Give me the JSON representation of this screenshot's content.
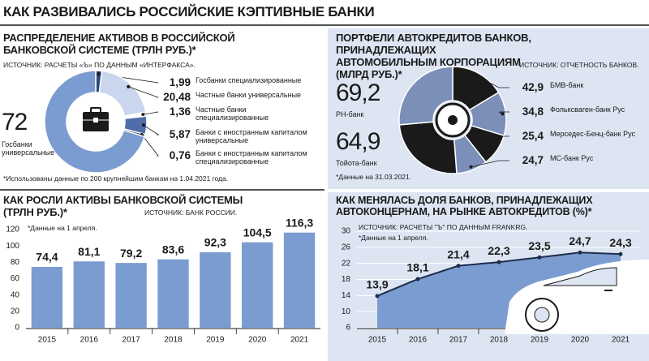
{
  "title": "КАК РАЗВИВАЛИСЬ РОССИЙСКИЕ КЭПТИВНЫЕ БАНКИ",
  "chart_data": [
    {
      "type": "pie",
      "title": "РАСПРЕДЕЛЕНИЕ АКТИВОВ В РОССИЙСКОЙ БАНКОВСКОЙ СИСТЕМЕ (ТРЛН РУБ.)*",
      "source": "ИСТОЧНИК: РАСЧЕТЫ «Ъ» ПО ДАННЫМ «ИНТЕРФАКСА».",
      "note": "*Использованы данные по 200 крупнейшим банкам на 1.04.2021 года.",
      "categories": [
        "Госбанки специализированные",
        "Частные банки универсальные",
        "Частные банки специализированные",
        "Банки с иностранным капиталом универсальные",
        "Банки с иностранным капиталом специализированные",
        "Госбанки универсальные"
      ],
      "values": [
        1.99,
        20.48,
        1.36,
        5.87,
        0.76,
        72
      ],
      "value_labels": [
        "1,99",
        "20,48",
        "1,36",
        "5,87",
        "0,76",
        "72"
      ],
      "colors": [
        "#2f4a7a",
        "#c9d6ee",
        "#ffffff",
        "#4d6ea8",
        "#2f4a7a",
        "#7b9cd0"
      ]
    },
    {
      "type": "pie",
      "title": "ПОРТФЕЛИ АВТОКРЕДИТОВ БАНКОВ, ПРИНАДЛЕЖАЩИХ АВТОМОБИЛЬНЫМ КОРПОРАЦИЯМ (МЛРД РУБ.)*",
      "source": "ИСТОЧНИК: ОТЧЕТНОСТЬ БАНКОВ.",
      "note": "*Данные на 31.03.2021.",
      "categories": [
        "БМВ-банк",
        "Фольксваген-банк Рус",
        "Мерседес-Бенц-банк Рус",
        "МС-банк Рус",
        "Тойота-банк",
        "РН-банк"
      ],
      "values": [
        42.9,
        34.8,
        25.4,
        24.7,
        64.9,
        69.2
      ],
      "value_labels": [
        "42,9",
        "34,8",
        "25,4",
        "24,7",
        "64,9",
        "69,2"
      ],
      "colors": [
        "#1a1a1a",
        "#7b8fb8",
        "#1a1a1a",
        "#7b8fb8",
        "#1a1a1a",
        "#7b8fb8"
      ]
    },
    {
      "type": "bar",
      "title": "КАК РОСЛИ АКТИВЫ БАНКОВСКОЙ СИСТЕМЫ (ТРЛН РУБ.)*",
      "source": "ИСТОЧНИК: БАНК РОССИИ.",
      "note": "*Данные на 1 апреля.",
      "categories": [
        "2015",
        "2016",
        "2017",
        "2018",
        "2019",
        "2020",
        "2021"
      ],
      "values": [
        74.4,
        81.1,
        79.2,
        83.6,
        92.3,
        104.5,
        116.3
      ],
      "value_labels": [
        "74,4",
        "81,1",
        "79,2",
        "83,6",
        "92,3",
        "104,5",
        "116,3"
      ],
      "color": "#7b9cd0",
      "ylim": [
        0,
        120
      ],
      "yticks": [
        0,
        20,
        40,
        60,
        80,
        100,
        120
      ],
      "grid": false
    },
    {
      "type": "area",
      "title": "КАК МЕНЯЛАСЬ ДОЛЯ БАНКОВ, ПРИНАДЛЕЖАЩИХ АВТОКОНЦЕРНАМ, НА РЫНКЕ АВТОКРЕДИТОВ (%)*",
      "source": "ИСТОЧНИК: РАСЧЕТЫ \"Ъ\" ПО ДАННЫМ FRANKRG.",
      "note": "*Данные на 1 апреля.",
      "categories": [
        "2015",
        "2016",
        "2017",
        "2018",
        "2019",
        "2020",
        "2021"
      ],
      "values": [
        13.9,
        18.1,
        21.4,
        22.3,
        23.5,
        24.7,
        24.3
      ],
      "value_labels": [
        "13,9",
        "18,1",
        "21,4",
        "22,3",
        "23,5",
        "24,7",
        "24,3"
      ],
      "color": "#7b9cd0",
      "ylim": [
        6,
        30
      ],
      "yticks": [
        6,
        10,
        14,
        18,
        22,
        26,
        30
      ],
      "grid": true
    }
  ]
}
